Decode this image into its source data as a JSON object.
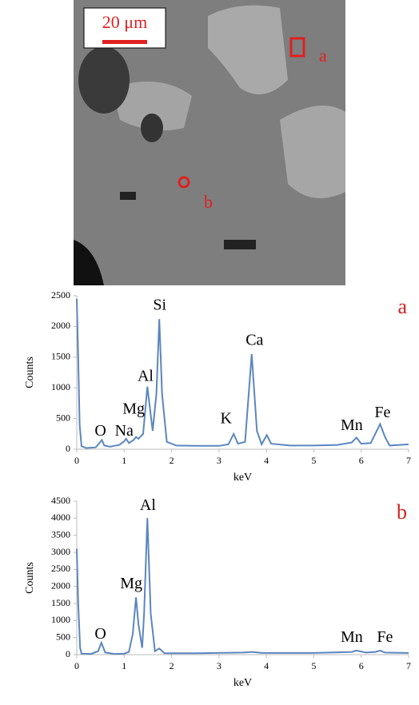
{
  "micrograph": {
    "scale_bar": "20 μm",
    "labels": [
      "a",
      "b"
    ]
  },
  "chart_data": [
    {
      "type": "line",
      "panel_label": "a",
      "xlabel": "keV",
      "ylabel": "Counts",
      "color": "#5b86c0",
      "xlim": [
        0,
        7
      ],
      "xticks": [
        0,
        1,
        2,
        3,
        4,
        5,
        6,
        7
      ],
      "ylim": [
        0,
        2500
      ],
      "yticks": [
        0,
        500,
        1000,
        1500,
        2000,
        2500
      ],
      "x": [
        0,
        0.03,
        0.06,
        0.1,
        0.2,
        0.4,
        0.5,
        0.53,
        0.58,
        0.7,
        0.9,
        1.0,
        1.04,
        1.1,
        1.2,
        1.25,
        1.3,
        1.4,
        1.49,
        1.6,
        1.68,
        1.74,
        1.8,
        1.9,
        2.1,
        2.5,
        3.0,
        3.2,
        3.31,
        3.4,
        3.55,
        3.69,
        3.8,
        3.9,
        4.01,
        4.1,
        4.5,
        5.0,
        5.5,
        5.8,
        5.9,
        6.0,
        6.2,
        6.4,
        6.5,
        6.6,
        7.0
      ],
      "values": [
        2450,
        1500,
        400,
        50,
        20,
        30,
        120,
        150,
        60,
        40,
        70,
        130,
        170,
        100,
        150,
        200,
        170,
        250,
        1020,
        300,
        900,
        2120,
        900,
        120,
        60,
        55,
        55,
        80,
        250,
        90,
        120,
        1550,
        300,
        80,
        230,
        90,
        60,
        60,
        70,
        110,
        190,
        90,
        100,
        410,
        200,
        60,
        80
      ],
      "annotations": [
        {
          "text": "O",
          "x": 0.5,
          "y": 280
        },
        {
          "text": "Na",
          "x": 1.0,
          "y": 280
        },
        {
          "text": "Mg",
          "x": 1.2,
          "y": 640
        },
        {
          "text": "Al",
          "x": 1.45,
          "y": 1170
        },
        {
          "text": "Si",
          "x": 1.75,
          "y": 2330
        },
        {
          "text": "K",
          "x": 3.15,
          "y": 480
        },
        {
          "text": "Ca",
          "x": 3.75,
          "y": 1760
        },
        {
          "text": "Mn",
          "x": 5.8,
          "y": 370
        },
        {
          "text": "Fe",
          "x": 6.45,
          "y": 580
        }
      ]
    },
    {
      "type": "line",
      "panel_label": "b",
      "xlabel": "keV",
      "ylabel": "Counts",
      "color": "#5b86c0",
      "xlim": [
        0,
        7
      ],
      "xticks": [
        0,
        1,
        2,
        3,
        4,
        5,
        6,
        7
      ],
      "ylim": [
        0,
        4500
      ],
      "yticks": [
        0,
        500,
        1000,
        1500,
        2000,
        2500,
        3000,
        3500,
        4000,
        4500
      ],
      "x": [
        0,
        0.03,
        0.07,
        0.1,
        0.3,
        0.45,
        0.52,
        0.6,
        0.8,
        1.0,
        1.1,
        1.18,
        1.25,
        1.3,
        1.38,
        1.42,
        1.49,
        1.56,
        1.65,
        1.74,
        1.85,
        2.5,
        3.5,
        3.7,
        3.9,
        5.0,
        5.8,
        5.9,
        6.1,
        6.3,
        6.4,
        6.5,
        7.0
      ],
      "values": [
        3100,
        1500,
        200,
        30,
        20,
        100,
        350,
        60,
        20,
        30,
        80,
        600,
        1680,
        900,
        200,
        1200,
        4000,
        1200,
        100,
        180,
        40,
        40,
        60,
        80,
        50,
        50,
        80,
        120,
        60,
        80,
        120,
        60,
        50
      ],
      "annotations": [
        {
          "text": "O",
          "x": 0.5,
          "y": 580
        },
        {
          "text": "Mg",
          "x": 1.15,
          "y": 2050
        },
        {
          "text": "Al",
          "x": 1.5,
          "y": 4350
        },
        {
          "text": "Mn",
          "x": 5.8,
          "y": 480
        },
        {
          "text": "Fe",
          "x": 6.5,
          "y": 480
        }
      ]
    }
  ]
}
